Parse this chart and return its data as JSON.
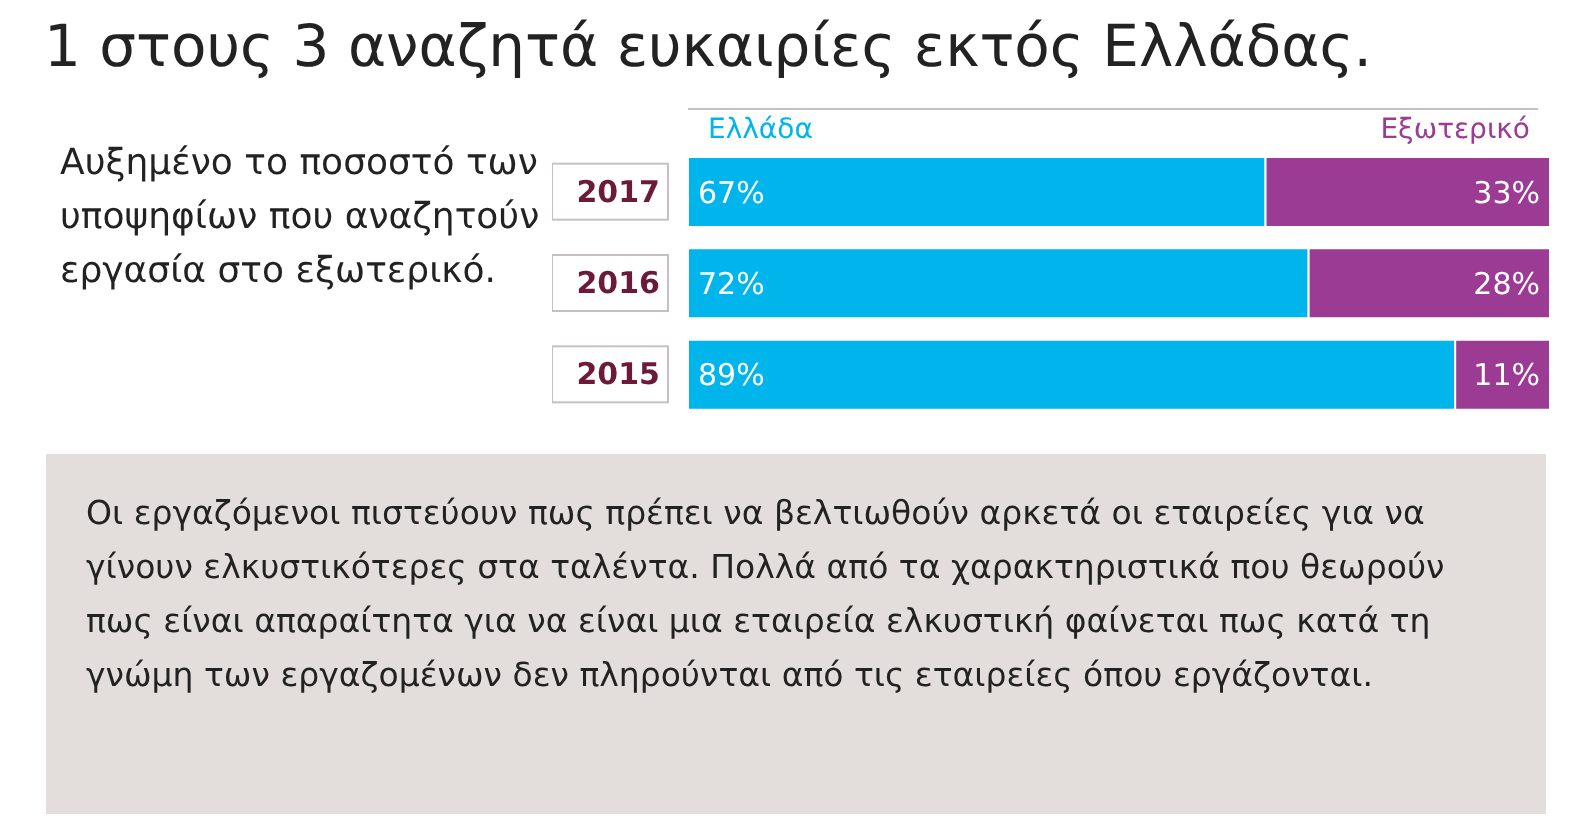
{
  "chart_data": {
    "type": "bar",
    "orientation": "horizontal",
    "stacked": true,
    "title": "1 στους 3 αναζητά ευκαιρίες εκτός Ελλάδας.",
    "subtitle": "Αυξημένο το ποσοστό των υποψηφίων που αναζητούν εργασία στο εξωτερικό.",
    "categories": [
      "2017",
      "2016",
      "2015"
    ],
    "xlim": [
      0,
      100
    ],
    "tick_labels": "y",
    "legend": "top",
    "series": [
      {
        "name": "Ελλάδα",
        "color": "#00b5ec",
        "values": [
          67,
          72,
          89
        ],
        "value_labels": [
          "67%",
          "72%",
          "89%"
        ]
      },
      {
        "name": "Εξωτερικό",
        "color": "#9b3b94",
        "values": [
          33,
          28,
          11
        ],
        "value_labels": [
          "33%",
          "28%",
          "11%"
        ]
      }
    ],
    "annotations": [
      "Οι εργαζόμενοι πιστεύουν πως πρέπει να βελτιωθούν αρκετά οι εταιρείες για να γίνουν ελκυστικότερες στα ταλέντα. Πολλά από τα χαρακτηριστικά που θεωρούν πως είναι απαραίτητα για να είναι μια εταιρεία ελκυστική φαίνεται πως κατά τη γνώμη των εργαζομένων δεν πληρούνται από τις εταιρείες όπου εργάζονται."
    ]
  }
}
